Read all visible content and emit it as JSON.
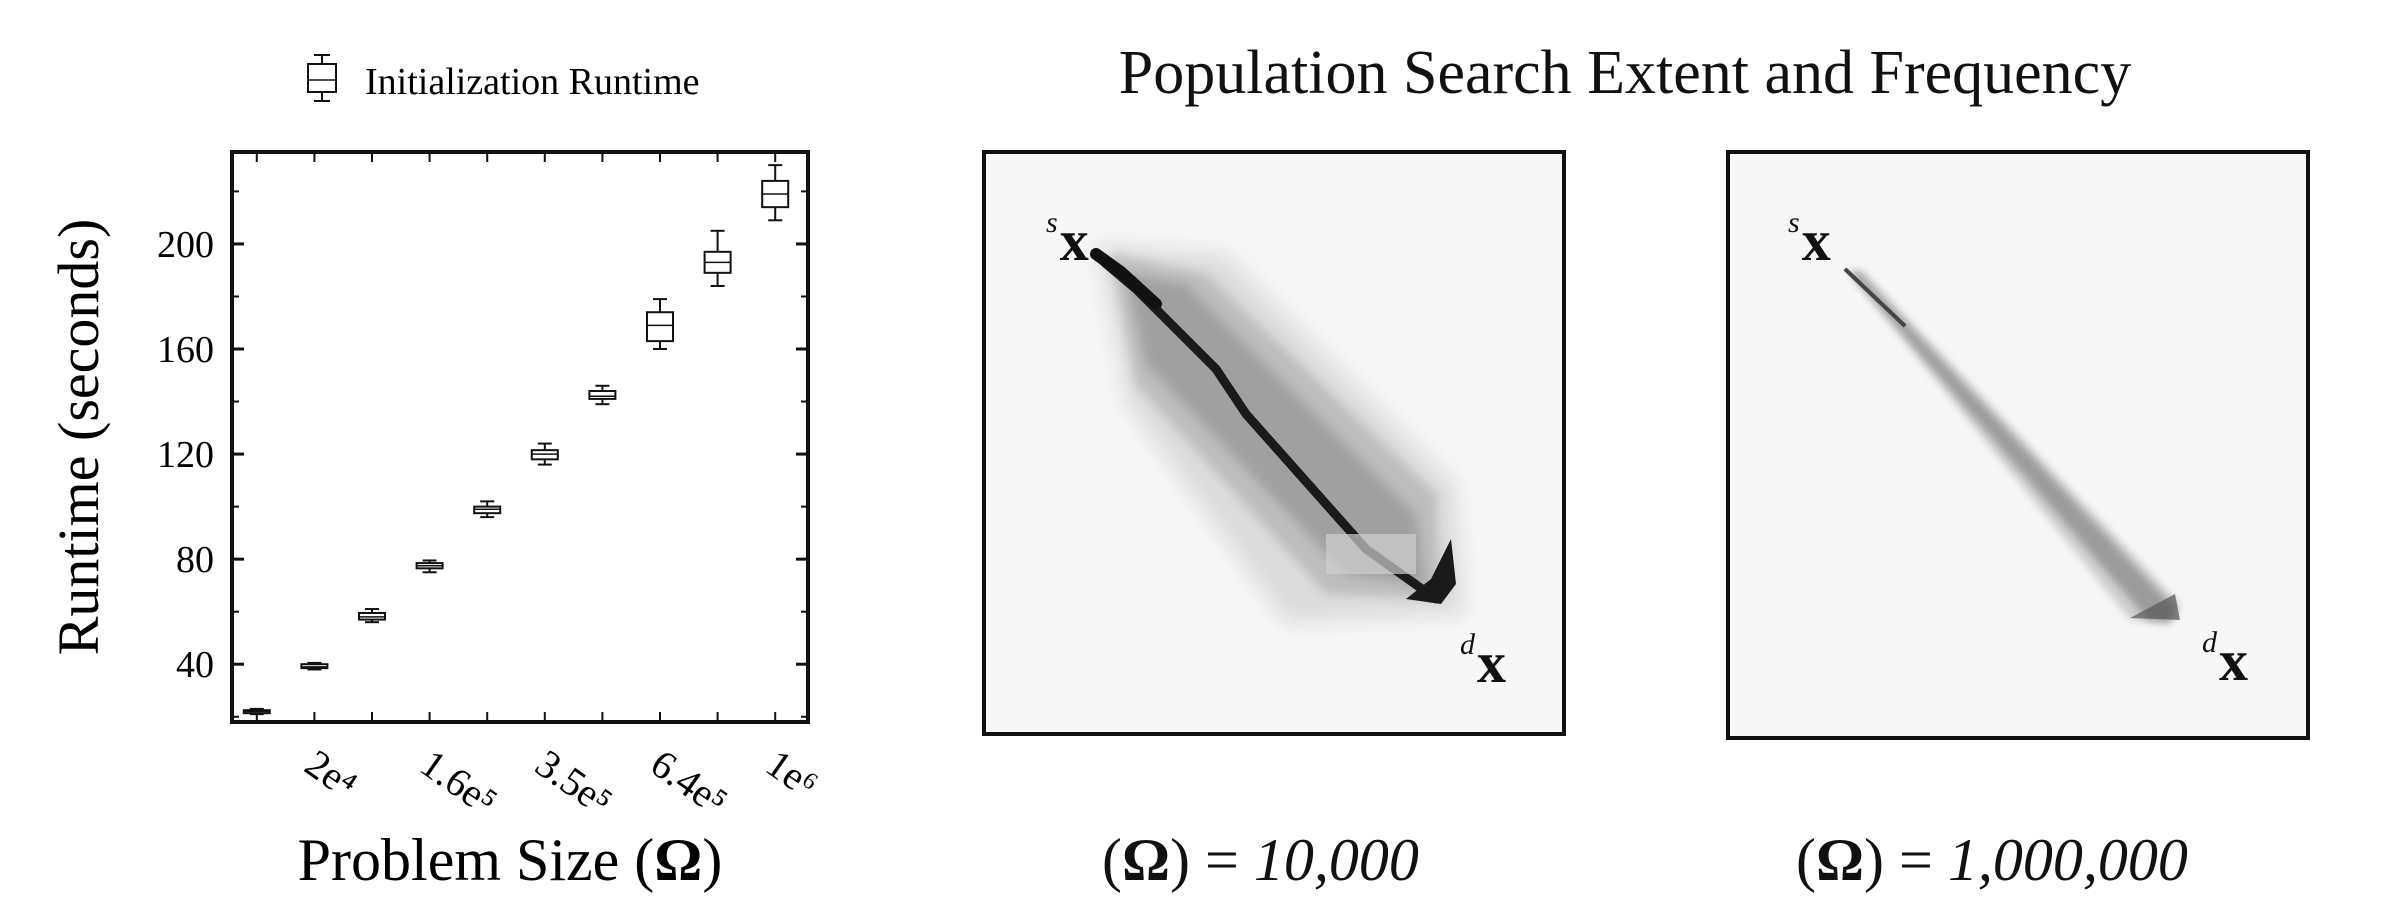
{
  "chart_data": [
    {
      "type": "box",
      "legend": [
        "Initialization Runtime"
      ],
      "xlabel": "Problem Size (Ω)",
      "ylabel": "Runtime (seconds)",
      "x_tick_labels": [
        "2e⁴",
        "1.6e⁵",
        "3.5e⁵",
        "6.4e⁵",
        "1e⁶"
      ],
      "y_ticks": [
        40,
        80,
        120,
        160,
        200
      ],
      "ylim": [
        18,
        235
      ],
      "grid": false,
      "legend_position": "top",
      "series": [
        {
          "name": "Initialization Runtime",
          "boxes": [
            {
              "whisker_low": 21,
              "q1": 21.5,
              "median": 22,
              "q3": 22.5,
              "whisker_high": 23
            },
            {
              "whisker_low": 38,
              "q1": 38.5,
              "median": 39,
              "q3": 40,
              "whisker_high": 40.5
            },
            {
              "whisker_low": 56,
              "q1": 57,
              "median": 58,
              "q3": 59.5,
              "whisker_high": 61
            },
            {
              "whisker_low": 75,
              "q1": 76.5,
              "median": 77.5,
              "q3": 78.5,
              "whisker_high": 79.5
            },
            {
              "whisker_low": 96,
              "q1": 97.5,
              "median": 99,
              "q3": 100,
              "whisker_high": 102
            },
            {
              "whisker_low": 116,
              "q1": 118,
              "median": 120,
              "q3": 121.5,
              "whisker_high": 124
            },
            {
              "whisker_low": 139,
              "q1": 141,
              "median": 142,
              "q3": 144,
              "whisker_high": 146
            },
            {
              "whisker_low": 160,
              "q1": 163,
              "median": 169,
              "q3": 174,
              "whisker_high": 179
            },
            {
              "whisker_low": 184,
              "q1": 189,
              "median": 193,
              "q3": 197,
              "whisker_high": 205
            },
            {
              "whisker_low": 209,
              "q1": 214,
              "median": 219,
              "q3": 224,
              "whisker_high": 230
            }
          ]
        }
      ]
    },
    {
      "type": "heatmap",
      "title": "Population Search Extent and Frequency",
      "caption_prefix": "(",
      "caption_omega": "Ω",
      "caption_mid": ") = ",
      "caption_value": "10,000",
      "start_label": "x",
      "start_sup": "s",
      "end_label": "x",
      "end_sup": "d"
    },
    {
      "type": "heatmap",
      "title": "Population Search Extent and Frequency",
      "caption_prefix": "(",
      "caption_omega": "Ω",
      "caption_mid": ") = ",
      "caption_value": "1,000,000",
      "start_label": "x",
      "start_sup": "s",
      "end_label": "x",
      "end_sup": "d"
    }
  ],
  "colors": {
    "axis": "#111111",
    "panel_bg": "#f7f7f7",
    "heat_dark": "#1a1a1a"
  }
}
